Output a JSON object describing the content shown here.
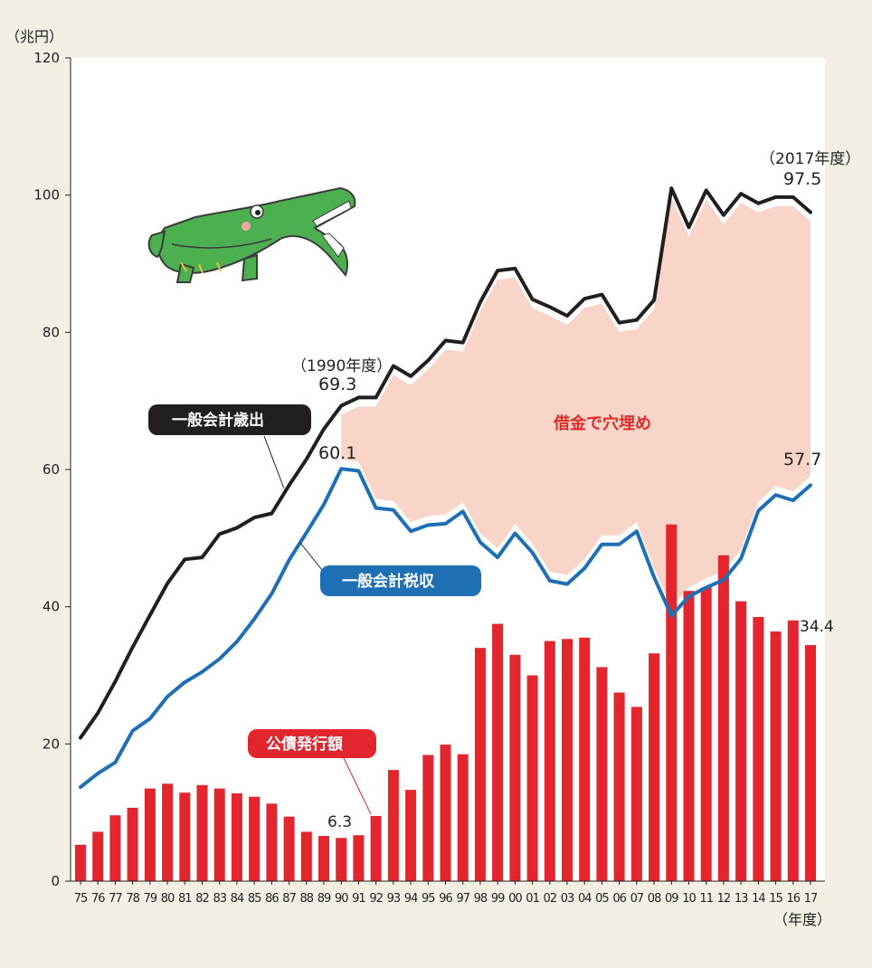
{
  "chart_data": {
    "type": "bar+line",
    "y_unit": "（兆円）",
    "x_unit": "（年度）",
    "ylim": [
      0,
      120
    ],
    "y_ticks": [
      "0",
      "20",
      "40",
      "60",
      "80",
      "100",
      "120"
    ],
    "categories": [
      "75",
      "76",
      "77",
      "78",
      "79",
      "80",
      "81",
      "82",
      "83",
      "84",
      "85",
      "86",
      "87",
      "88",
      "89",
      "90",
      "91",
      "92",
      "93",
      "94",
      "95",
      "96",
      "97",
      "98",
      "99",
      "00",
      "01",
      "02",
      "03",
      "04",
      "05",
      "06",
      "07",
      "08",
      "09",
      "10",
      "11",
      "12",
      "13",
      "14",
      "15",
      "16",
      "17"
    ],
    "series": [
      {
        "name": "一般会計歳出",
        "type": "line",
        "color": "#231f20",
        "values": [
          20.9,
          24.5,
          29.1,
          34.1,
          38.8,
          43.4,
          46.9,
          47.2,
          50.6,
          51.5,
          53.0,
          53.6,
          57.7,
          61.5,
          65.9,
          69.3,
          70.5,
          70.5,
          75.1,
          73.6,
          75.9,
          78.8,
          78.5,
          84.4,
          89.0,
          89.3,
          84.8,
          83.7,
          82.4,
          84.9,
          85.5,
          81.4,
          81.8,
          84.7,
          101.0,
          95.3,
          100.7,
          97.1,
          100.2,
          98.8,
          99.7,
          99.7,
          97.5
        ]
      },
      {
        "name": "一般会計税収",
        "type": "line",
        "color": "#1f6fb5",
        "values": [
          13.7,
          15.7,
          17.3,
          21.9,
          23.7,
          26.9,
          29.0,
          30.5,
          32.4,
          34.9,
          38.2,
          41.9,
          46.8,
          50.8,
          54.9,
          60.1,
          59.8,
          54.4,
          54.1,
          51.0,
          51.9,
          52.1,
          53.9,
          49.4,
          47.2,
          50.7,
          47.9,
          43.8,
          43.3,
          45.6,
          49.1,
          49.1,
          51.0,
          44.3,
          38.7,
          41.5,
          42.8,
          43.9,
          47.0,
          54.0,
          56.3,
          55.5,
          57.7
        ]
      },
      {
        "name": "公債発行額",
        "type": "bar",
        "color": "#e3262d",
        "values": [
          5.3,
          7.2,
          9.6,
          10.7,
          13.5,
          14.2,
          12.9,
          14.0,
          13.5,
          12.8,
          12.3,
          11.3,
          9.4,
          7.2,
          6.6,
          6.3,
          6.7,
          9.5,
          16.2,
          13.3,
          18.4,
          19.9,
          18.5,
          34.0,
          37.5,
          33.0,
          30.0,
          35.0,
          35.3,
          35.5,
          31.2,
          27.5,
          25.4,
          33.2,
          52.0,
          42.3,
          42.8,
          47.5,
          40.8,
          38.5,
          36.4,
          38.0,
          34.4
        ]
      }
    ],
    "annotations": {
      "y1990_label": "（1990年度）",
      "y1990_value": "69.3",
      "y2017_label": "（2017年度）",
      "y2017_value": "97.5",
      "tax1990_value": "60.1",
      "tax2017_value": "57.7",
      "bond1990_value": "6.3",
      "bond2017_value": "34.4",
      "gap_label": "借金で穴埋め"
    },
    "legend_labels": {
      "expenditure": "一般会計歳出",
      "tax": "一般会計税収",
      "bonds": "公債発行額"
    },
    "colors": {
      "gap_fill": "#f8d5c8",
      "pill_dark": "#231f20",
      "pill_blue": "#1f6fb5",
      "pill_red": "#e3262d"
    }
  },
  "illustration": {
    "icon": "crocodile-icon"
  }
}
